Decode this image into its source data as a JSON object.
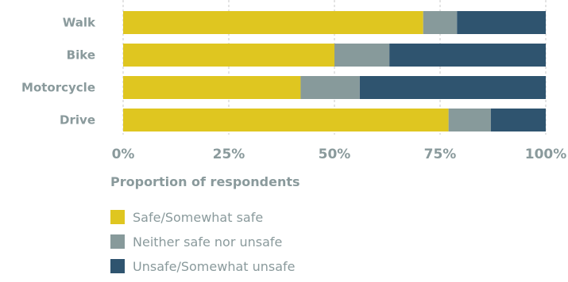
{
  "chart_data": {
    "type": "bar",
    "orientation": "horizontal",
    "stacked": true,
    "categories": [
      "Walk",
      "Bike",
      "Motorcycle",
      "Drive"
    ],
    "series": [
      {
        "name": "Safe/Somewhat safe",
        "color": "#dfc620",
        "values": [
          71,
          50,
          42,
          77
        ]
      },
      {
        "name": "Neither safe nor unsafe",
        "color": "#879a9b",
        "values": [
          8,
          13,
          14,
          10
        ]
      },
      {
        "name": "Unsafe/Somewhat unsafe",
        "color": "#2f546f",
        "values": [
          21,
          37,
          44,
          13
        ]
      }
    ],
    "xlim": [
      0,
      100
    ],
    "xticks": [
      "0%",
      "25%",
      "50%",
      "75%",
      "100%"
    ],
    "xlabel": "Proportion of respondents",
    "grid": true,
    "legend_position": "bottom"
  }
}
